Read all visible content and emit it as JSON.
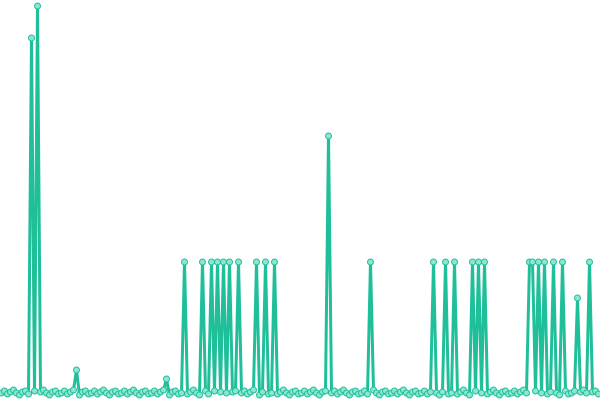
{
  "chart_data": {
    "type": "line",
    "color": "#1fbf9a",
    "marker_color": "#8ee6cf",
    "ylim": [
      0,
      400
    ],
    "values": [
      7,
      9,
      6,
      8,
      10,
      7,
      5,
      8,
      9,
      6,
      362,
      9,
      394,
      8,
      10,
      7,
      5,
      8,
      9,
      6,
      7,
      9,
      6,
      8,
      10,
      30,
      5,
      8,
      9,
      6,
      7,
      9,
      6,
      8,
      10,
      7,
      5,
      8,
      9,
      6,
      7,
      9,
      6,
      8,
      10,
      7,
      5,
      8,
      9,
      6,
      7,
      9,
      6,
      8,
      10,
      21,
      5,
      8,
      9,
      6,
      7,
      138,
      6,
      8,
      10,
      7,
      5,
      138,
      9,
      6,
      138,
      9,
      138,
      8,
      138,
      7,
      138,
      8,
      9,
      138,
      7,
      9,
      6,
      8,
      10,
      138,
      5,
      8,
      138,
      6,
      7,
      138,
      6,
      8,
      10,
      7,
      5,
      8,
      9,
      6,
      7,
      9,
      6,
      8,
      10,
      7,
      5,
      8,
      9,
      264,
      7,
      9,
      6,
      8,
      10,
      7,
      5,
      8,
      9,
      6,
      7,
      9,
      6,
      138,
      10,
      7,
      5,
      8,
      9,
      6,
      7,
      9,
      6,
      8,
      10,
      7,
      5,
      8,
      9,
      6,
      7,
      9,
      6,
      8,
      138,
      7,
      5,
      8,
      138,
      6,
      7,
      138,
      6,
      8,
      10,
      7,
      5,
      138,
      9,
      138,
      7,
      138,
      6,
      8,
      10,
      7,
      5,
      8,
      9,
      6,
      7,
      9,
      6,
      8,
      10,
      7,
      138,
      138,
      9,
      138,
      7,
      138,
      6,
      8,
      138,
      7,
      5,
      138,
      9,
      6,
      7,
      9,
      102,
      8,
      10,
      7,
      138,
      8,
      9,
      6
    ]
  }
}
